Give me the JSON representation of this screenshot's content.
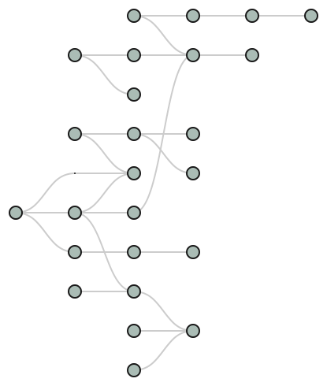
{
  "graph": {
    "colors": {
      "background": "#ffffff",
      "edge": "#cccccc",
      "node_fill": "#aabcb5",
      "node_stroke": "#1a1a1a"
    },
    "nodes": [
      {
        "id": "a",
        "col": 2,
        "row": 0
      },
      {
        "id": "b",
        "col": 3,
        "row": 0
      },
      {
        "id": "c",
        "col": 4,
        "row": 0
      },
      {
        "id": "d",
        "col": 5,
        "row": 0
      },
      {
        "id": "e",
        "col": 1,
        "row": 1
      },
      {
        "id": "f",
        "col": 2,
        "row": 1
      },
      {
        "id": "g",
        "col": 3,
        "row": 1
      },
      {
        "id": "h",
        "col": 4,
        "row": 1
      },
      {
        "id": "i",
        "col": 2,
        "row": 2
      },
      {
        "id": "j",
        "col": 1,
        "row": 3
      },
      {
        "id": "k",
        "col": 2,
        "row": 3
      },
      {
        "id": "l",
        "col": 3,
        "row": 3
      },
      {
        "id": "m",
        "col": 2,
        "row": 4
      },
      {
        "id": "n",
        "col": 3,
        "row": 4
      },
      {
        "id": "o",
        "col": 0,
        "row": 5
      },
      {
        "id": "p",
        "col": 1,
        "row": 5
      },
      {
        "id": "q",
        "col": 2,
        "row": 5
      },
      {
        "id": "r",
        "col": 1,
        "row": 6
      },
      {
        "id": "s",
        "col": 2,
        "row": 6
      },
      {
        "id": "t",
        "col": 3,
        "row": 6
      },
      {
        "id": "u",
        "col": 1,
        "row": 7
      },
      {
        "id": "v",
        "col": 2,
        "row": 7
      },
      {
        "id": "w",
        "col": 2,
        "row": 8
      },
      {
        "id": "x",
        "col": 3,
        "row": 8
      },
      {
        "id": "y",
        "col": 2,
        "row": 9
      }
    ],
    "hidden_points": [
      {
        "id": "hp1",
        "col": 1,
        "row": 4
      }
    ],
    "edges": [
      {
        "from": "a",
        "to": "b"
      },
      {
        "from": "b",
        "to": "c"
      },
      {
        "from": "c",
        "to": "d"
      },
      {
        "from": "a",
        "to": "g"
      },
      {
        "from": "e",
        "to": "f"
      },
      {
        "from": "f",
        "to": "g"
      },
      {
        "from": "e",
        "to": "i"
      },
      {
        "from": "g",
        "to": "h"
      },
      {
        "from": "j",
        "to": "k"
      },
      {
        "from": "k",
        "to": "l"
      },
      {
        "from": "k",
        "to": "n"
      },
      {
        "from": "j",
        "to": "m"
      },
      {
        "from": "o",
        "to": "hp1"
      },
      {
        "from": "hp1",
        "to": "m"
      },
      {
        "from": "o",
        "to": "p"
      },
      {
        "from": "p",
        "to": "q"
      },
      {
        "from": "p",
        "to": "m"
      },
      {
        "from": "q",
        "to": "g"
      },
      {
        "from": "o",
        "to": "r"
      },
      {
        "from": "r",
        "to": "s"
      },
      {
        "from": "s",
        "to": "t"
      },
      {
        "from": "p",
        "to": "v"
      },
      {
        "from": "u",
        "to": "v"
      },
      {
        "from": "v",
        "to": "x"
      },
      {
        "from": "w",
        "to": "x"
      },
      {
        "from": "y",
        "to": "x"
      }
    ]
  }
}
